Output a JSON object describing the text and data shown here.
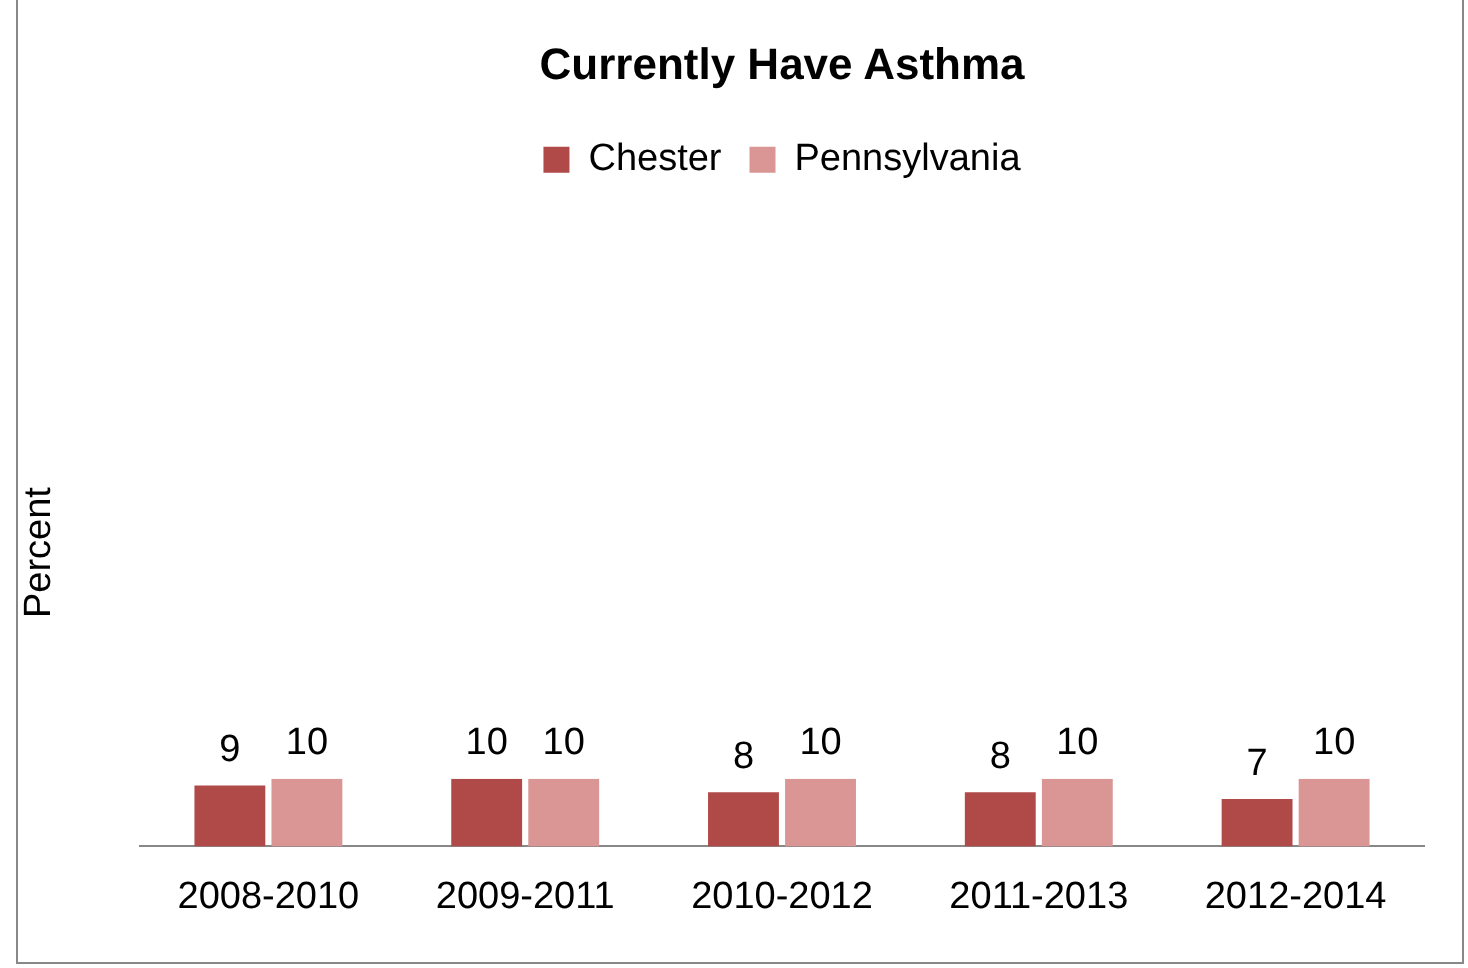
{
  "chart_data": {
    "type": "bar",
    "title": "Currently Have Asthma",
    "ylabel": "Percent",
    "categories": [
      "2008-2010",
      "2009-2011",
      "2010-2012",
      "2011-2013",
      "2012-2014"
    ],
    "series": [
      {
        "name": "Chester",
        "color": "#b04a48",
        "values": [
          9,
          10,
          8,
          8,
          7
        ]
      },
      {
        "name": "Pennsylvania",
        "color": "#d99694",
        "values": [
          10,
          10,
          10,
          10,
          10
        ]
      }
    ],
    "tick_labels": "x",
    "grid": false,
    "legend": "top",
    "data_labels": true
  }
}
